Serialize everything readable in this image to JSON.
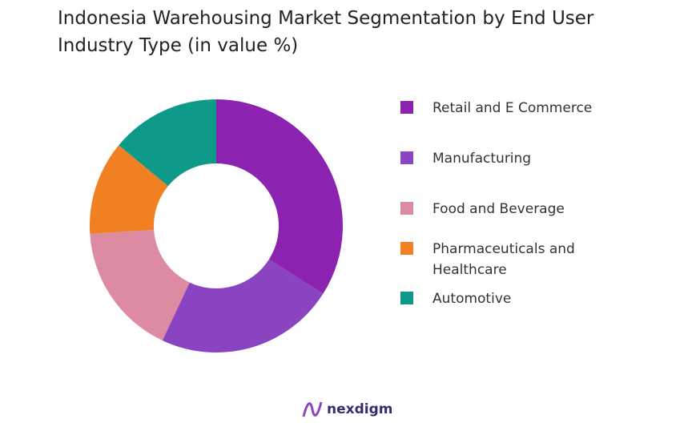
{
  "chart_data": {
    "type": "donut",
    "title": "Indonesia Warehousing Market Segmentation by End User Industry Type (in value %)",
    "categories": [
      "Retail and E Commerce",
      "Manufacturing",
      "Food and Beverage",
      "Pharmaceuticals and Healthcare",
      "Automotive"
    ],
    "values": [
      34,
      23,
      17,
      12,
      14
    ],
    "colors": [
      "#8b22b0",
      "#8a44c2",
      "#dd8aa3",
      "#f08021",
      "#0e9a88"
    ],
    "legend": "right"
  },
  "brand": "nexdigm"
}
